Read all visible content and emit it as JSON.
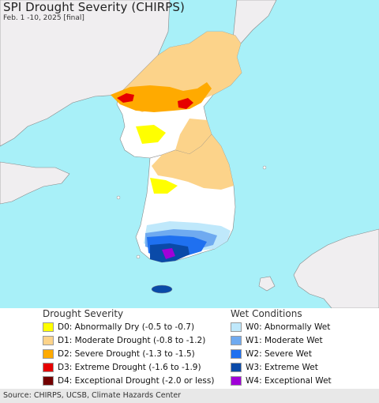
{
  "header": {
    "title": "SPI Drought Severity (CHIRPS)",
    "subtitle": "Feb. 1 -10, 2025 [final]"
  },
  "map": {
    "colors": {
      "sea": "#a8f0f8",
      "land_other": "#f0eef0",
      "normal": "#ffffff",
      "border": "#888888"
    }
  },
  "legend": {
    "drought": {
      "heading": "Drought Severity",
      "items": [
        {
          "label": "D0: Abnormally Dry (-0.5 to -0.7)",
          "color": "#ffff00"
        },
        {
          "label": "D1: Moderate Drought (-0.8 to -1.2)",
          "color": "#fcd38a"
        },
        {
          "label": "D2: Severe Drought (-1.3 to -1.5)",
          "color": "#ffaa00"
        },
        {
          "label": "D3: Extreme Drought (-1.6 to -1.9)",
          "color": "#e60000"
        },
        {
          "label": "D4: Exceptional Drought (-2.0 or less)",
          "color": "#730000"
        }
      ]
    },
    "wet": {
      "heading": "Wet Conditions",
      "items": [
        {
          "label": "W0: Abnormally Wet",
          "color": "#bfe8fb"
        },
        {
          "label": "W1: Moderate Wet",
          "color": "#6faaf0"
        },
        {
          "label": "W2: Severe Wet",
          "color": "#1f70f0"
        },
        {
          "label": "W3: Extreme Wet",
          "color": "#0a4aa8"
        },
        {
          "label": "W4: Exceptional Wet",
          "color": "#a000d8"
        }
      ]
    }
  },
  "footer": {
    "source": "Source: CHIRPS, UCSB, Climate Hazards Center"
  }
}
